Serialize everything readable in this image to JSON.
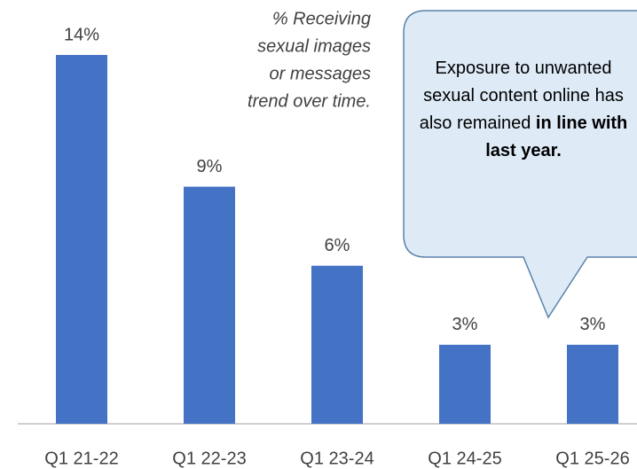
{
  "chart_data": {
    "type": "bar",
    "categories": [
      "Q1 21-22",
      "Q1 22-23",
      "Q1 23-24",
      "Q1 24-25",
      "Q1 25-26"
    ],
    "values": [
      14,
      9,
      6,
      3,
      3
    ],
    "value_labels": [
      "14%",
      "9%",
      "6%",
      "3%",
      "3%"
    ],
    "color": "#4472c4",
    "ylim": [
      0,
      14
    ],
    "annotation": [
      "% Receiving",
      "sexual images",
      "or messages",
      "trend over time."
    ],
    "callout": {
      "text": "Exposure to unwanted sexual content online has also remained ",
      "bold": "in line with last year."
    }
  }
}
